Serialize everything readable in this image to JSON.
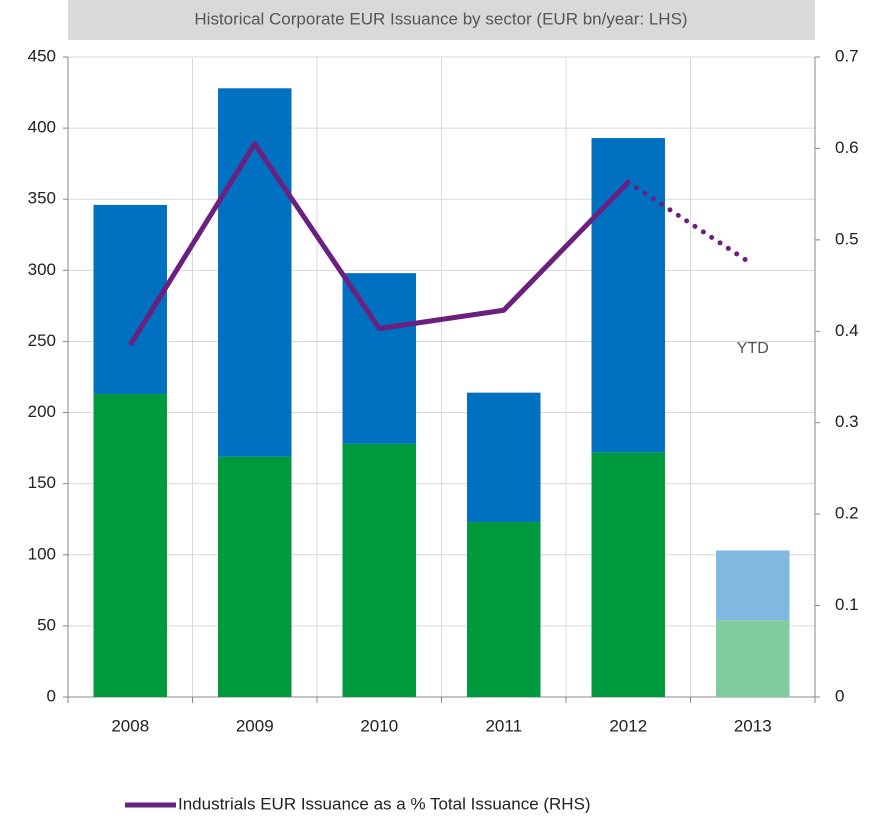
{
  "chart_data": {
    "type": "bar",
    "stacked": true,
    "title": "Historical Corporate EUR Issuance by sector (EUR bn/year: LHS)",
    "categories": [
      "2008",
      "2009",
      "2010",
      "2011",
      "2012",
      "2013"
    ],
    "series": [
      {
        "values": [
          213,
          169,
          178,
          123,
          172,
          54
        ],
        "color": "#009a3e",
        "colors": [
          "#009a3e",
          "#009a3e",
          "#009a3e",
          "#009a3e",
          "#009a3e",
          "#80cc9e"
        ]
      },
      {
        "values": [
          133,
          259,
          120,
          91,
          221,
          49
        ],
        "color": "#0070c0",
        "colors": [
          "#0070c0",
          "#0070c0",
          "#0070c0",
          "#0070c0",
          "#0070c0",
          "#7fb8e0"
        ]
      },
      {
        "name": "Industrials EUR Issuance as a % Total Issuance (RHS)",
        "type": "line",
        "axis": "y2",
        "color": "#6b1f7f",
        "values": [
          0.385,
          0.605,
          0.403,
          0.423,
          0.563,
          0.473
        ],
        "dotted_from_index": 4
      }
    ],
    "annotations": [
      {
        "text": "YTD",
        "category": "2013",
        "y": 245
      }
    ],
    "ylim": [
      0,
      450
    ],
    "yticks": [
      0,
      50,
      100,
      150,
      200,
      250,
      300,
      350,
      400,
      450
    ],
    "y2lim": [
      0,
      0.7
    ],
    "y2ticks": [
      0,
      0.1,
      0.2,
      0.3,
      0.4,
      0.5,
      0.6,
      0.7
    ],
    "grid": true,
    "legend": "bottom"
  }
}
